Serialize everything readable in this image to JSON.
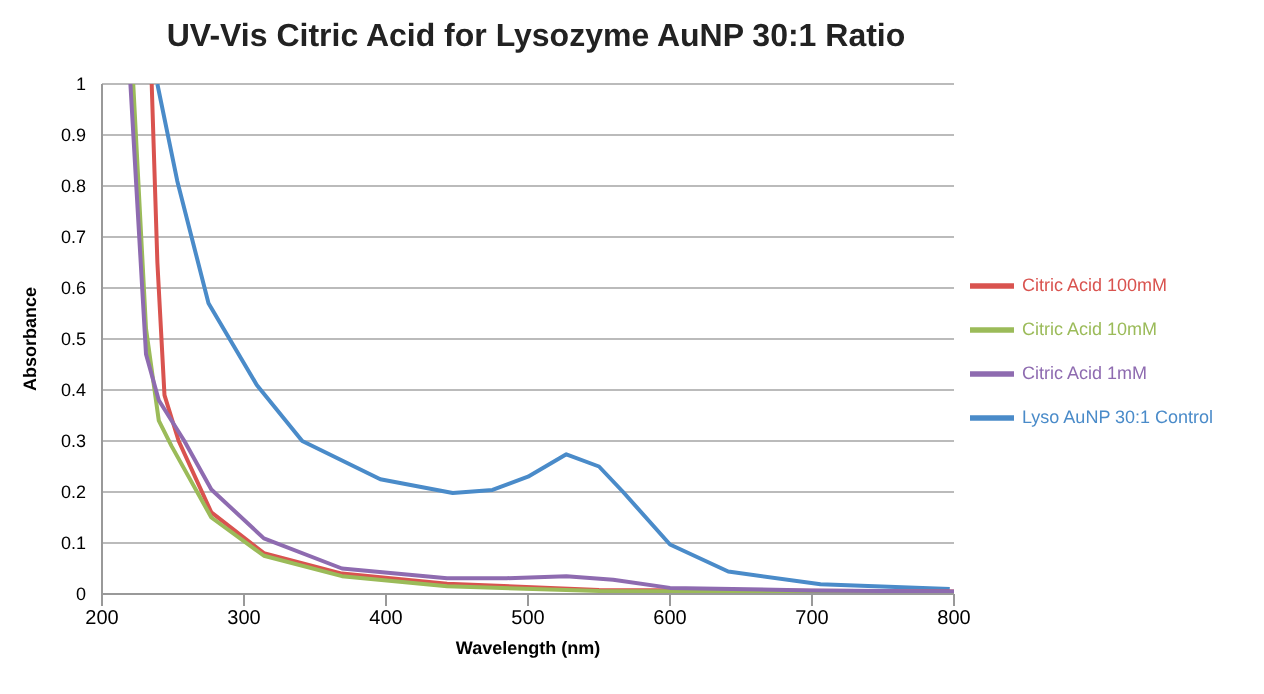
{
  "chart_data": {
    "type": "line",
    "title": "UV-Vis Citric Acid for Lysozyme AuNP 30:1 Ratio",
    "xlabel": "Wavelength (nm)",
    "ylabel": "Absorbance",
    "xlim": [
      200,
      800
    ],
    "xticks": [
      200,
      300,
      400,
      500,
      600,
      700,
      800
    ],
    "ylim": [
      0,
      1
    ],
    "yticks": [
      0,
      0.1,
      0.2,
      0.3,
      0.4,
      0.5,
      0.6,
      0.7,
      0.8,
      0.9,
      1
    ],
    "grid": "y",
    "legend": "right",
    "marker": "none",
    "line_style": "solid",
    "series": [
      {
        "name": "Lyso AuNP 30:1 Control",
        "color": "#4a8bc9",
        "x": [
          239,
          253,
          275,
          309,
          341,
          396,
          447,
          475,
          500,
          527,
          550,
          567,
          600,
          641,
          706,
          797
        ],
        "values": [
          1,
          0.81,
          0.57,
          0.41,
          0.3,
          0.225,
          0.198,
          0.204,
          0.23,
          0.274,
          0.25,
          0.2,
          0.097,
          0.044,
          0.019,
          0.01
        ]
      },
      {
        "name": "Citric Acid 100mM",
        "color": "#d9534f",
        "x": [
          235,
          239,
          244,
          254,
          277,
          314,
          369,
          443,
          550,
          800
        ],
        "values": [
          1,
          0.65,
          0.39,
          0.3,
          0.16,
          0.08,
          0.04,
          0.02,
          0.008,
          0.005
        ]
      },
      {
        "name": "Citric Acid 10mM",
        "color": "#9bbb59",
        "x": [
          222,
          231,
          240,
          249,
          277,
          314,
          369,
          443,
          550,
          800
        ],
        "values": [
          1,
          0.52,
          0.34,
          0.29,
          0.15,
          0.075,
          0.035,
          0.015,
          0.006,
          0.004
        ]
      },
      {
        "name": "Citric Acid 1mM",
        "color": "#8e6bb0",
        "x": [
          220,
          231,
          240,
          258,
          277,
          314,
          369,
          443,
          485,
          527,
          560,
          600,
          700,
          800
        ],
        "values": [
          1,
          0.47,
          0.38,
          0.3,
          0.205,
          0.109,
          0.05,
          0.031,
          0.031,
          0.035,
          0.028,
          0.012,
          0.007,
          0.005
        ]
      }
    ]
  }
}
